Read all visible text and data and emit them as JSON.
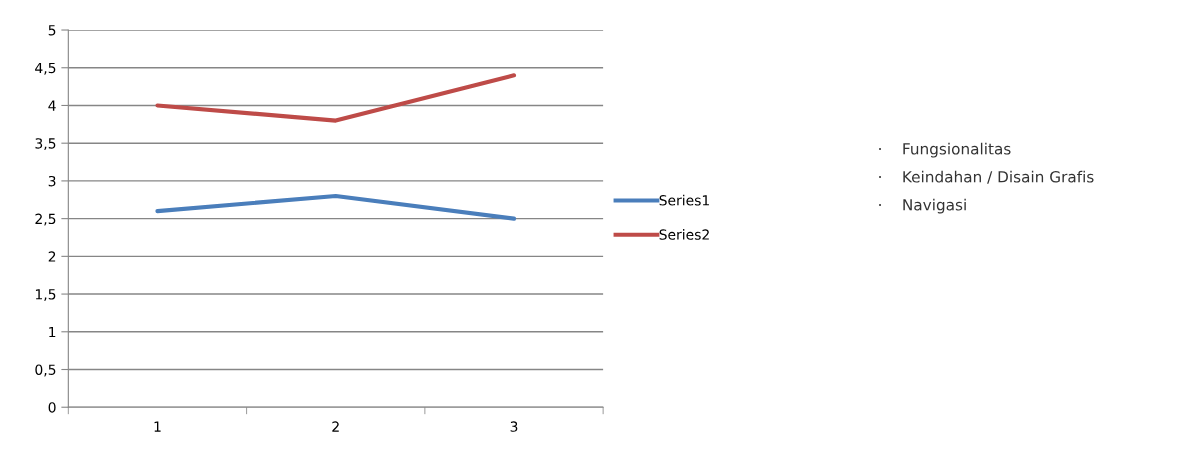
{
  "chart_data": {
    "type": "line",
    "categories": [
      "1",
      "2",
      "3"
    ],
    "series": [
      {
        "name": "Series1",
        "color": "#4a7ebb",
        "values": [
          2.6,
          2.8,
          2.5
        ]
      },
      {
        "name": "Series2",
        "color": "#be4b48",
        "values": [
          4.0,
          3.8,
          4.4
        ]
      }
    ],
    "ylim": [
      0,
      5
    ],
    "yticks": [
      0,
      {
        "value": 0.5,
        "label": "0,5"
      },
      1,
      {
        "value": 1.5,
        "label": "1,5"
      },
      2,
      {
        "value": 2.5,
        "label": "2,5"
      },
      3,
      {
        "value": 3.5,
        "label": "3,5"
      },
      4,
      {
        "value": 4.5,
        "label": "4,5"
      },
      5
    ],
    "grid": "y",
    "legend": "right",
    "marker": "none",
    "line_style": "solid",
    "annotations": [
      "·    Fungsionalitas",
      "·    Keindahan / Disain Grafis",
      "·    Navigasi"
    ]
  }
}
